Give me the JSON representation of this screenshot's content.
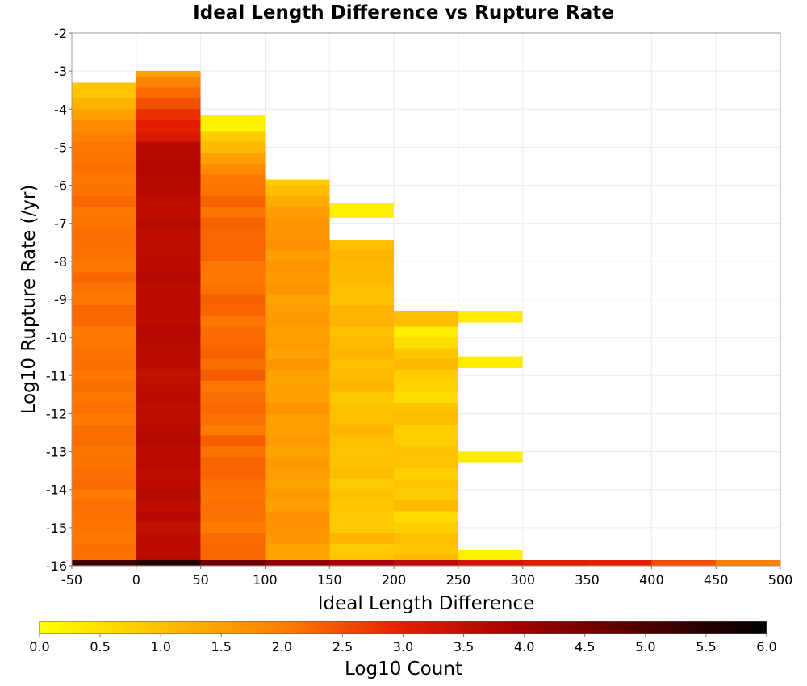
{
  "chart_data": {
    "type": "heatmap",
    "title": "Ideal Length Difference vs Rupture Rate",
    "xlabel": "Ideal Length Difference",
    "ylabel": "Log10 Rupture Rate (/yr)",
    "xlim": [
      -50,
      500
    ],
    "ylim": [
      -16,
      -2
    ],
    "x_ticks": [
      "-50",
      "0",
      "50",
      "100",
      "150",
      "200",
      "250",
      "300",
      "350",
      "400",
      "450",
      "500"
    ],
    "y_ticks": [
      "-2",
      "-3",
      "-4",
      "-5",
      "-6",
      "-7",
      "-8",
      "-9",
      "-10",
      "-11",
      "-12",
      "-13",
      "-14",
      "-15",
      "-16"
    ],
    "x_bin_width": 50,
    "y_bin_height": 0.2857,
    "grid": true,
    "colorscale": {
      "label": "Log10 Count",
      "min": 0.0,
      "max": 6.0,
      "ticks": [
        "0.0",
        "0.5",
        "1.0",
        "1.5",
        "2.0",
        "2.5",
        "3.0",
        "3.5",
        "4.0",
        "4.5",
        "5.0",
        "5.5",
        "6.0"
      ],
      "stops": [
        {
          "v": 0.0,
          "color": "#ffff00"
        },
        {
          "v": 1.0,
          "color": "#ffbf00"
        },
        {
          "v": 2.0,
          "color": "#ff7f00"
        },
        {
          "v": 3.0,
          "color": "#e61e00"
        },
        {
          "v": 4.0,
          "color": "#a00000"
        },
        {
          "v": 5.0,
          "color": "#500000"
        },
        {
          "v": 6.0,
          "color": "#000000"
        }
      ]
    },
    "columns": [
      {
        "x0": -50,
        "x1": 0,
        "y_min": -16,
        "y_max": -3.3,
        "base": 2.15,
        "variation": 0.1,
        "top_values": [
          0.9,
          1.2,
          1.5,
          1.8,
          2.0
        ]
      },
      {
        "x0": 0,
        "x1": 50,
        "y_min": -16,
        "y_max": -3.0,
        "base": 3.6,
        "variation": 0.1,
        "top_values": [
          1.5,
          1.9,
          2.2,
          2.5,
          2.8,
          3.0,
          3.2
        ]
      },
      {
        "x0": 50,
        "x1": 100,
        "y_min": -16,
        "y_max": -4.15,
        "base": 2.2,
        "variation": 0.15,
        "top_values": [
          0.2,
          0.8,
          1.1,
          1.5,
          1.8
        ]
      },
      {
        "x0": 100,
        "x1": 150,
        "y_min": -16,
        "y_max": -5.85,
        "base": 1.6,
        "variation": 0.15,
        "top_values": [
          0.8,
          1.0,
          1.3
        ]
      },
      {
        "x0": 150,
        "x1": 200,
        "y_min": -16,
        "y_max": -6.45,
        "base": 1.0,
        "variation": 0.2,
        "gaps": [
          [
            -7.3,
            -7.0
          ]
        ],
        "top_values": [
          0.2,
          0.3
        ]
      },
      {
        "x0": 200,
        "x1": 250,
        "y_min": -16,
        "y_max": -9.3,
        "base": 0.8,
        "variation": 0.3,
        "top_values": [
          1.0,
          0.3,
          0.5
        ]
      },
      {
        "x0": 250,
        "x1": 300,
        "y_min": -16,
        "y_max": -15.6,
        "base": 0.3,
        "variation": 0.1
      }
    ],
    "extra_cells": [
      {
        "x0": 250,
        "x1": 300,
        "y0": -9.6,
        "y1": -9.3,
        "value": 0.3
      },
      {
        "x0": 250,
        "x1": 300,
        "y0": -10.8,
        "y1": -10.5,
        "value": 0.3
      },
      {
        "x0": 250,
        "x1": 300,
        "y0": -13.3,
        "y1": -13.0,
        "value": 0.3
      }
    ],
    "bottom_row": {
      "y0": -16.0,
      "y1": -15.85,
      "cells": [
        {
          "x0": -50,
          "x1": 0,
          "value": 5.2
        },
        {
          "x0": 0,
          "x1": 50,
          "value": 5.5
        },
        {
          "x0": 50,
          "x1": 100,
          "value": 4.6
        },
        {
          "x0": 100,
          "x1": 150,
          "value": 4.2
        },
        {
          "x0": 150,
          "x1": 200,
          "value": 3.9
        },
        {
          "x0": 200,
          "x1": 250,
          "value": 3.6
        },
        {
          "x0": 250,
          "x1": 300,
          "value": 3.3
        },
        {
          "x0": 300,
          "x1": 350,
          "value": 3.1
        },
        {
          "x0": 350,
          "x1": 400,
          "value": 3.0
        },
        {
          "x0": 400,
          "x1": 450,
          "value": 2.5
        },
        {
          "x0": 450,
          "x1": 500,
          "value": 2.0
        }
      ]
    }
  }
}
